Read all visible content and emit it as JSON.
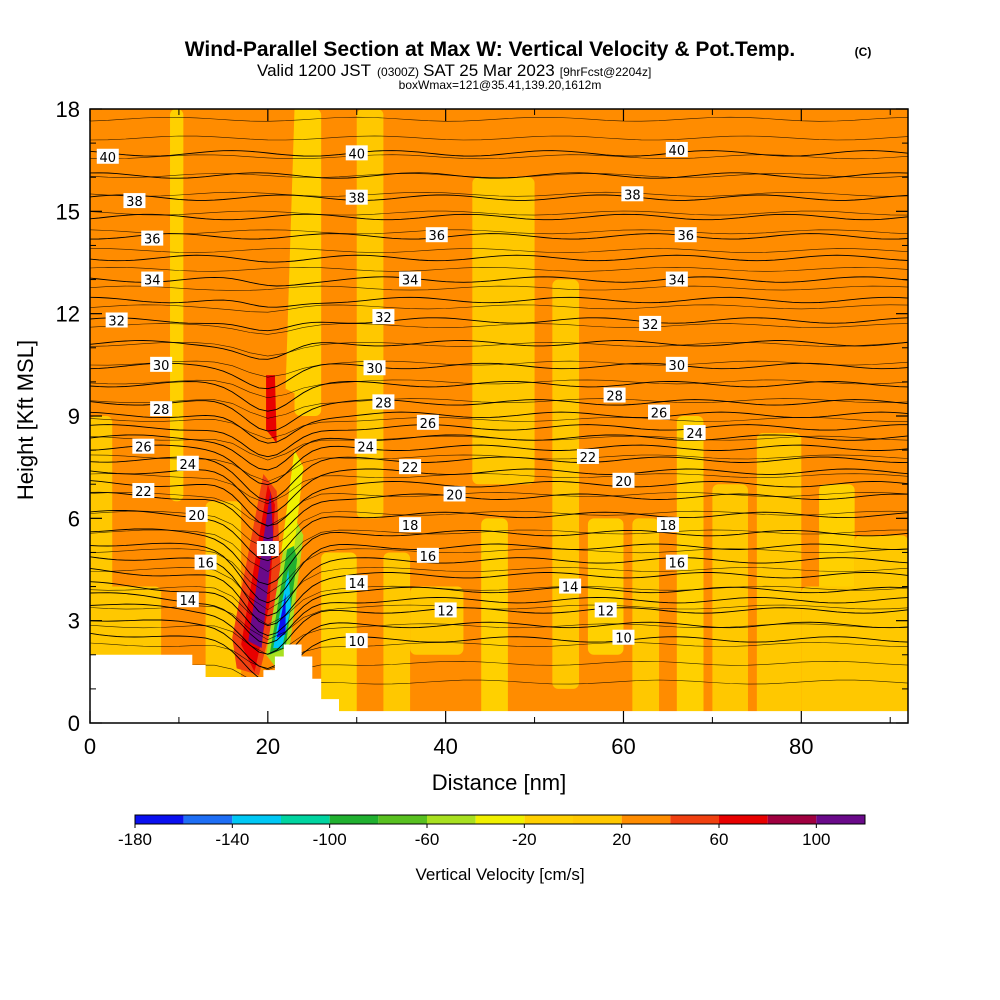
{
  "title": {
    "main": "Wind-Parallel Section at Max W: Vertical Velocity & Pot.Temp.",
    "main_suffix": "(C)",
    "valid_prefix": "Valid 1200 JST",
    "valid_utc": "(0300Z)",
    "valid_date": "SAT 25 Mar 2023",
    "forecast": "[9hrFcst@2204z]",
    "box": "boxWmax=121@35.41,139.20,1612m"
  },
  "chart_data": {
    "type": "heatmap",
    "xlabel": "Distance [nm]",
    "ylabel": "Height [Kft MSL]",
    "xlim": [
      0,
      92
    ],
    "ylim": [
      0,
      18
    ],
    "x_ticks": [
      "0",
      "20",
      "40",
      "60",
      "80"
    ],
    "y_ticks": [
      "0",
      "3",
      "6",
      "9",
      "12",
      "15",
      "18"
    ],
    "grid": false,
    "colorbar": {
      "label": "Vertical Velocity [cm/s]",
      "tick_labels": [
        "-180",
        "-140",
        "-100",
        "-60",
        "-20",
        "20",
        "60",
        "100"
      ],
      "levels": [
        -180,
        -160,
        -140,
        -120,
        -100,
        -80,
        -60,
        -40,
        -20,
        0,
        20,
        40,
        60,
        80,
        100
      ],
      "colors": [
        "#0a10f0",
        "#1e6ef5",
        "#00c8f5",
        "#00d4a0",
        "#20b030",
        "#58c020",
        "#a8e020",
        "#f0f000",
        "#ffd000",
        "#ffc800",
        "#ff8c00",
        "#f04010",
        "#e80000",
        "#a00040",
        "#6a0a8a"
      ]
    },
    "background_color": "#ff8c00",
    "background_band_colors": [
      "#ffc800",
      "#ffd000"
    ],
    "terrain_color": "#ffffff",
    "contour_field": "potential temperature",
    "contour_labels": [
      {
        "text": "40",
        "x": 2,
        "y": 16.6
      },
      {
        "text": "40",
        "x": 30,
        "y": 16.7
      },
      {
        "text": "40",
        "x": 66,
        "y": 16.8
      },
      {
        "text": "38",
        "x": 5,
        "y": 15.3
      },
      {
        "text": "38",
        "x": 30,
        "y": 15.4
      },
      {
        "text": "38",
        "x": 61,
        "y": 15.5
      },
      {
        "text": "36",
        "x": 7,
        "y": 14.2
      },
      {
        "text": "36",
        "x": 39,
        "y": 14.3
      },
      {
        "text": "36",
        "x": 67,
        "y": 14.3
      },
      {
        "text": "34",
        "x": 7,
        "y": 13.0
      },
      {
        "text": "34",
        "x": 36,
        "y": 13.0
      },
      {
        "text": "34",
        "x": 66,
        "y": 13.0
      },
      {
        "text": "32",
        "x": 3,
        "y": 11.8
      },
      {
        "text": "32",
        "x": 33,
        "y": 11.9
      },
      {
        "text": "32",
        "x": 63,
        "y": 11.7
      },
      {
        "text": "30",
        "x": 8,
        "y": 10.5
      },
      {
        "text": "30",
        "x": 32,
        "y": 10.4
      },
      {
        "text": "30",
        "x": 66,
        "y": 10.5
      },
      {
        "text": "28",
        "x": 8,
        "y": 9.2
      },
      {
        "text": "28",
        "x": 33,
        "y": 9.4
      },
      {
        "text": "28",
        "x": 59,
        "y": 9.6
      },
      {
        "text": "26",
        "x": 6,
        "y": 8.1
      },
      {
        "text": "26",
        "x": 38,
        "y": 8.8
      },
      {
        "text": "26",
        "x": 64,
        "y": 9.1
      },
      {
        "text": "24",
        "x": 11,
        "y": 7.6
      },
      {
        "text": "24",
        "x": 31,
        "y": 8.1
      },
      {
        "text": "24",
        "x": 68,
        "y": 8.5
      },
      {
        "text": "22",
        "x": 6,
        "y": 6.8
      },
      {
        "text": "22",
        "x": 36,
        "y": 7.5
      },
      {
        "text": "22",
        "x": 56,
        "y": 7.8
      },
      {
        "text": "20",
        "x": 12,
        "y": 6.1
      },
      {
        "text": "20",
        "x": 41,
        "y": 6.7
      },
      {
        "text": "20",
        "x": 60,
        "y": 7.1
      },
      {
        "text": "18",
        "x": 20,
        "y": 5.1
      },
      {
        "text": "18",
        "x": 36,
        "y": 5.8
      },
      {
        "text": "18",
        "x": 65,
        "y": 5.8
      },
      {
        "text": "16",
        "x": 13,
        "y": 4.7
      },
      {
        "text": "16",
        "x": 38,
        "y": 4.9
      },
      {
        "text": "16",
        "x": 66,
        "y": 4.7
      },
      {
        "text": "14",
        "x": 11,
        "y": 3.6
      },
      {
        "text": "14",
        "x": 30,
        "y": 4.1
      },
      {
        "text": "14",
        "x": 54,
        "y": 4.0
      },
      {
        "text": "12",
        "x": 40,
        "y": 3.3
      },
      {
        "text": "12",
        "x": 58,
        "y": 3.3
      },
      {
        "text": "10",
        "x": 30,
        "y": 2.4
      },
      {
        "text": "10",
        "x": 60,
        "y": 2.5
      }
    ]
  }
}
